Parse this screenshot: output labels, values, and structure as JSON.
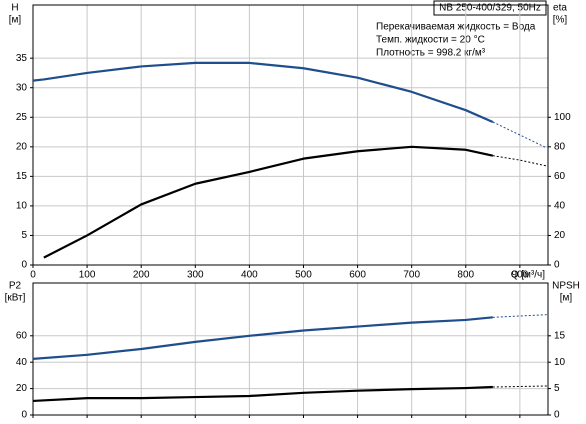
{
  "chart_data": [
    {
      "type": "line",
      "title": "NB 250-400/329, 50Hz",
      "annotations": [
        "Перекачиваемая жидкость = Вода",
        "Темп. жидкости = 20 °C",
        "Плотность = 998.2 кг/м³"
      ],
      "x_label": "Q [м³/ч]",
      "y_label": "H",
      "y_unit": "[м]",
      "y2_label": "eta",
      "y2_unit": "[%]",
      "x": [
        0,
        20,
        100,
        200,
        300,
        400,
        500,
        600,
        700,
        800,
        850,
        900,
        950
      ],
      "series": [
        {
          "color": "#1f4e8c",
          "style": "solid",
          "values": [
            31.2,
            31.4,
            32.5,
            33.6,
            34.2,
            34.2,
            33.3,
            31.7,
            29.3,
            26.2,
            24.2,
            null,
            null
          ]
        },
        {
          "color": "#1f4e8c",
          "style": "dashed",
          "values": [
            null,
            null,
            null,
            null,
            null,
            null,
            null,
            null,
            null,
            null,
            24.2,
            22,
            19.8
          ]
        },
        {
          "color": "#000000",
          "style": "solid",
          "axis": "y2",
          "values": [
            null,
            5,
            20,
            41,
            55,
            63,
            72,
            77,
            80,
            78,
            74,
            null,
            null
          ]
        },
        {
          "color": "#000000",
          "style": "dashed",
          "axis": "y2",
          "values": [
            null,
            null,
            null,
            null,
            null,
            null,
            null,
            null,
            null,
            null,
            74,
            71,
            67
          ]
        }
      ],
      "xlim": [
        0,
        952
      ],
      "xticks": [
        0,
        100,
        200,
        300,
        400,
        500,
        600,
        700,
        800,
        900
      ],
      "ylim": [
        0,
        44
      ],
      "yticks": [
        0,
        5,
        10,
        15,
        20,
        25,
        30,
        35
      ],
      "y2lim": [
        0,
        176
      ],
      "y2ticks": [
        0,
        20,
        40,
        60,
        80,
        100
      ],
      "grid": true
    },
    {
      "type": "line",
      "y_label": "P2",
      "y_unit": "[кВт]",
      "y2_label": "NPSH",
      "y2_unit": "[м]",
      "x": [
        0,
        100,
        200,
        300,
        400,
        500,
        600,
        700,
        800,
        850,
        900,
        950
      ],
      "series": [
        {
          "color": "#1f4e8c",
          "style": "solid",
          "values": [
            42.5,
            45.6,
            50,
            55.4,
            60,
            64,
            67,
            70,
            72,
            74,
            null,
            null
          ]
        },
        {
          "color": "#1f4e8c",
          "style": "dashed",
          "values": [
            null,
            null,
            null,
            null,
            null,
            null,
            null,
            null,
            null,
            74,
            75,
            76
          ]
        },
        {
          "color": "#000000",
          "style": "solid",
          "axis": "y2",
          "values": [
            2.66,
            3.2,
            3.2,
            3.4,
            3.6,
            4.2,
            4.6,
            4.9,
            5.1,
            5.3,
            null,
            null
          ]
        },
        {
          "color": "#000000",
          "style": "dashed",
          "axis": "y2",
          "values": [
            null,
            null,
            null,
            null,
            null,
            null,
            null,
            null,
            null,
            5.3,
            5.4,
            5.5
          ]
        }
      ],
      "xlim": [
        0,
        952
      ],
      "xticks": [
        0,
        100,
        200,
        300,
        400,
        500,
        600,
        700,
        800,
        900
      ],
      "show_xtick_labels": false,
      "ylim": [
        0,
        100
      ],
      "yticks": [
        0,
        20,
        40,
        60
      ],
      "y2lim": [
        0,
        25
      ],
      "y2ticks": [
        0,
        5,
        10,
        15
      ],
      "grid": true
    }
  ]
}
